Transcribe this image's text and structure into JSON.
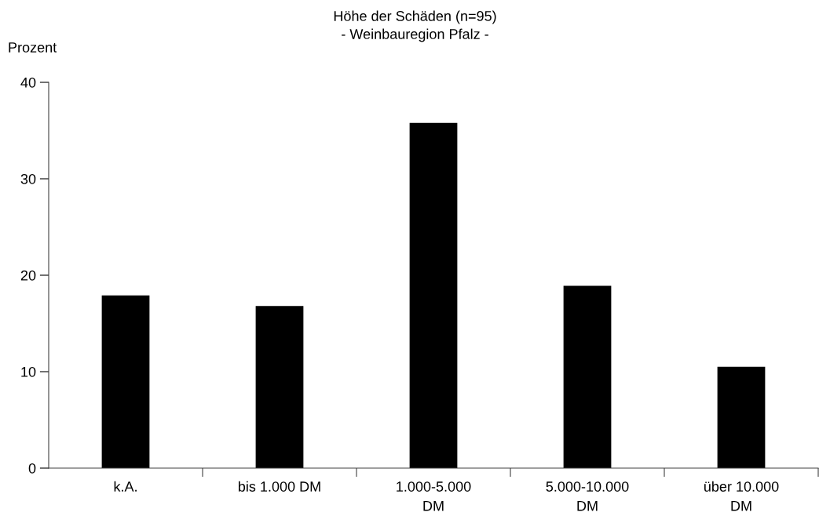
{
  "chart_data": {
    "type": "bar",
    "title": "Höhe der Schäden (n=95)",
    "subtitle": "- Weinbauregion Pfalz -",
    "ylabel": "Prozent",
    "categories": [
      "k.A.",
      "bis 1.000 DM",
      "1.000-5.000\nDM",
      "5.000-10.000\nDM",
      "über 10.000\nDM"
    ],
    "values": [
      17.9,
      16.8,
      35.8,
      18.9,
      10.5
    ],
    "color": "#000000",
    "ylim": [
      0,
      40
    ],
    "yticks": [
      0,
      10,
      20,
      30,
      40
    ],
    "grid": false,
    "legend": false
  }
}
